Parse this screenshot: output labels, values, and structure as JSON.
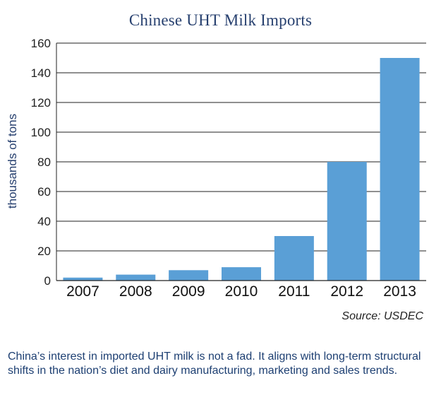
{
  "chart_data": {
    "type": "bar",
    "title": "Chinese UHT Milk Imports",
    "xlabel": "",
    "ylabel": "thousands of tons",
    "categories": [
      "2007",
      "2008",
      "2009",
      "2010",
      "2011",
      "2012",
      "2013"
    ],
    "values": [
      2,
      4,
      7,
      9,
      30,
      80,
      150
    ],
    "ylim": [
      0,
      160
    ],
    "yticks": [
      0,
      20,
      40,
      60,
      80,
      100,
      120,
      140,
      160
    ],
    "grid": true,
    "bar_color": "#5a9fd6"
  },
  "source": "Source: USDEC",
  "caption": "China’s interest in imported UHT milk is not a fad. It aligns with long-term structural shifts in the nation’s diet and dairy manufacturing, marketing and sales trends."
}
